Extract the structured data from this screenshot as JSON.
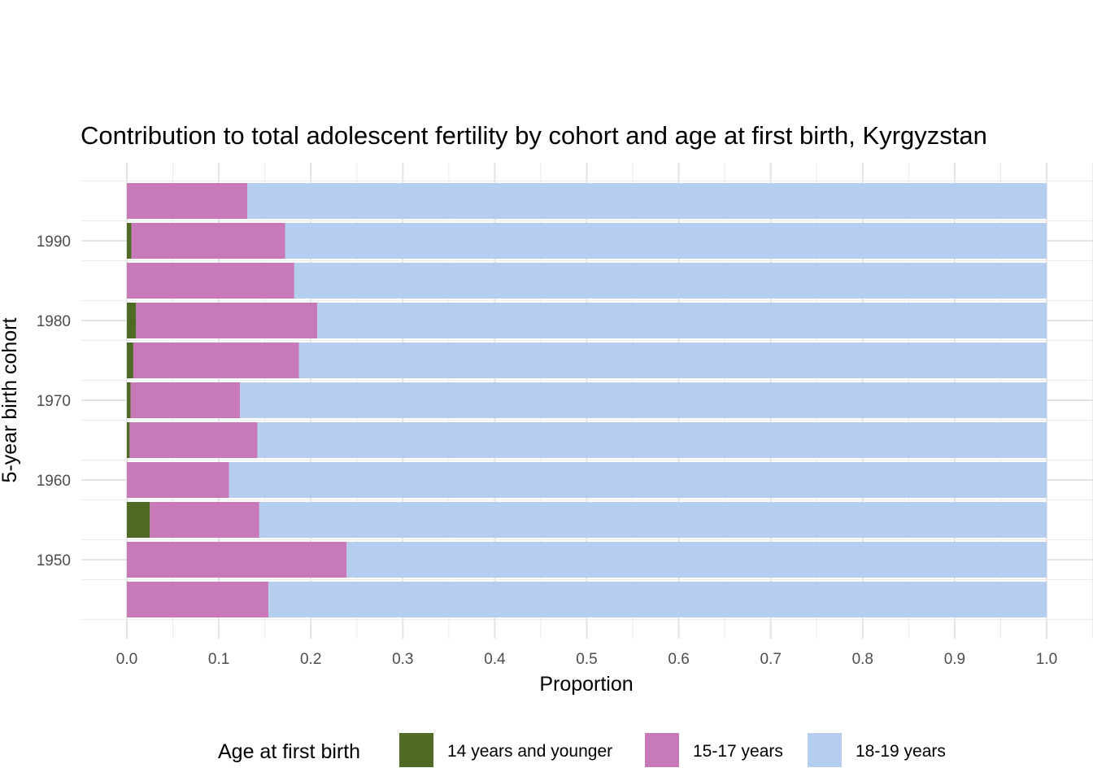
{
  "chart_data": {
    "type": "bar",
    "orientation": "horizontal",
    "stacked": true,
    "title": "Contribution to total adolescent fertility by cohort and age at first birth,  Kyrgyzstan",
    "xlabel": "Proportion",
    "ylabel": "5-year birth cohort",
    "xlim": [
      0,
      1
    ],
    "xticks": [
      "0.0",
      "0.1",
      "0.2",
      "0.3",
      "0.4",
      "0.5",
      "0.6",
      "0.7",
      "0.8",
      "0.9",
      "1.0"
    ],
    "yticks": [
      "1950",
      "1960",
      "1970",
      "1980",
      "1990"
    ],
    "categories": [
      1945,
      1950,
      1955,
      1960,
      1965,
      1970,
      1975,
      1980,
      1985,
      1990,
      1995
    ],
    "series": [
      {
        "name": "14 years and younger",
        "color": "#4e6a24",
        "values": [
          0,
          0,
          0.025,
          0,
          0.003,
          0.004,
          0.007,
          0.01,
          0,
          0.005,
          0
        ]
      },
      {
        "name": "15-17 years",
        "color": "#c87ab8",
        "values": [
          0.154,
          0.239,
          0.119,
          0.111,
          0.139,
          0.119,
          0.18,
          0.197,
          0.182,
          0.167,
          0.131
        ]
      },
      {
        "name": "18-19 years",
        "color": "#b5cdef",
        "values": [
          0.846,
          0.761,
          0.856,
          0.889,
          0.858,
          0.877,
          0.813,
          0.793,
          0.818,
          0.828,
          0.869
        ]
      }
    ],
    "legend": {
      "title": "Age at first birth",
      "position": "bottom"
    },
    "grid": true
  }
}
